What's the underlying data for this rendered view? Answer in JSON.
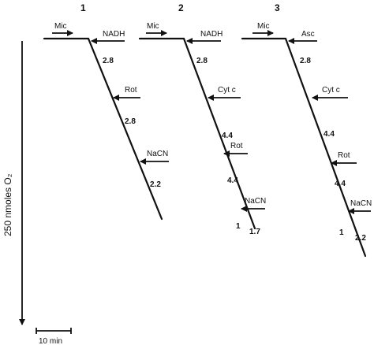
{
  "y_axis_label": "250 nmoles O₂",
  "scale_bar_label": "10 min",
  "panels": [
    {
      "number": "1",
      "additions": [
        "Mic",
        "NADH",
        "Rot",
        "NaCN"
      ],
      "rates": [
        "2.8",
        "2.8",
        "2.2"
      ]
    },
    {
      "number": "2",
      "additions": [
        "Mic",
        "NADH",
        "Cyt c",
        "Rot",
        "NaCN"
      ],
      "rates": [
        "2.8",
        "4.4",
        "4.4",
        "1.7"
      ],
      "rate_marks": [
        "1"
      ]
    },
    {
      "number": "3",
      "additions": [
        "Mic",
        "Asc",
        "Cyt c",
        "Rot",
        "NaCN"
      ],
      "rates": [
        "2.8",
        "4.4",
        "4.4",
        "2.2"
      ],
      "rate_marks": [
        "1"
      ]
    }
  ]
}
